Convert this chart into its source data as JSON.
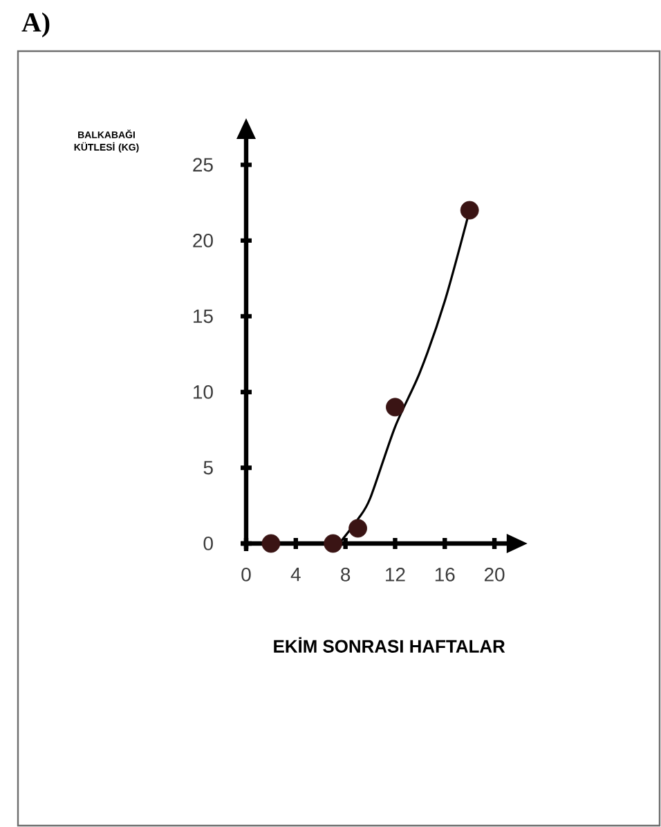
{
  "chart_data": {
    "type": "scatter",
    "title": "A)",
    "xlabel": "EKİM SONRASI HAFTALAR",
    "annotations": [
      "BALKABAĞI KÜTLESİ (KG)"
    ],
    "xlim": [
      -0.4,
      21.1
    ],
    "ylim": [
      -0.5,
      26.8
    ],
    "xticks": [
      0,
      4,
      8,
      12,
      16,
      20
    ],
    "yticks": [
      0,
      5,
      10,
      15,
      20,
      25
    ],
    "series": [
      {
        "type": "line",
        "color": "#000000",
        "marker": "none",
        "line_style": "solid",
        "x": [
          7.5,
          9,
          10,
          12,
          14,
          16,
          18
        ],
        "values": [
          0,
          1.6,
          3,
          7.7,
          11.3,
          16,
          22
        ]
      },
      {
        "color": "#3a1414",
        "marker": "circle",
        "x": [
          2,
          7,
          9,
          12,
          18
        ],
        "values": [
          0,
          0,
          1,
          9,
          22
        ]
      }
    ]
  }
}
